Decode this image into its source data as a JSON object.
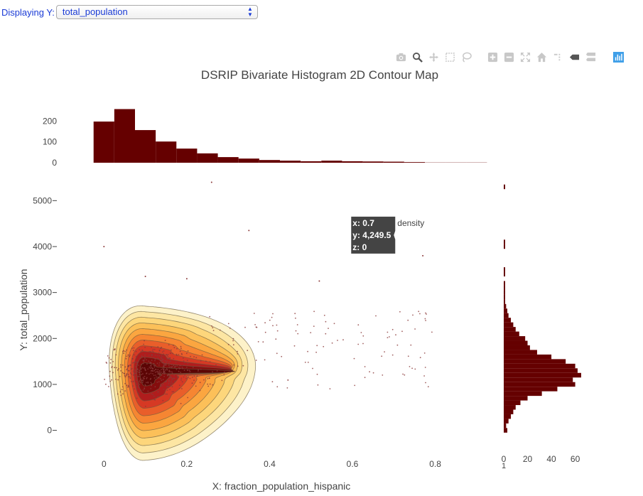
{
  "selector": {
    "label": "Displaying Y:",
    "value": "total_population"
  },
  "modebar": [
    "camera-icon",
    "zoom-icon",
    "pan-icon",
    "box-select-icon",
    "lasso-icon",
    "zoom-in-icon",
    "zoom-out-icon",
    "autoscale-icon",
    "home-icon",
    "spike-lines-icon",
    "hover-closest-icon",
    "hover-compare-icon",
    "plotly-logo-icon"
  ],
  "colors": {
    "hist": "#650000",
    "scatter": "#8b3a3a",
    "contour": [
      "#fdf2c9",
      "#fde6a3",
      "#fdd67b",
      "#fcc059",
      "#fba640",
      "#f68632",
      "#e95e2a",
      "#d63924",
      "#b01d1d",
      "#850d0d",
      "#5c0505"
    ]
  },
  "chart_data": {
    "type": "contour",
    "title": "DSRIP Bivariate Histogram 2D Contour Map",
    "xlabel": "X:  fraction_population_hispanic",
    "ylabel": "Y:  total_population",
    "xlim": [
      -0.1,
      0.95
    ],
    "ylim": [
      -300,
      5500
    ],
    "xticks": [
      0,
      0.2,
      0.4,
      0.6,
      0.8
    ],
    "xtick_labels": [
      "0",
      "0.2",
      "0.4",
      "0.6",
      "0.8"
    ],
    "yticks": [
      0,
      1000,
      2000,
      3000,
      4000,
      5000
    ],
    "ytick_labels": [
      "0",
      "1000",
      "2000",
      "3000",
      "4000",
      "5000"
    ],
    "density_peak": {
      "x": 0.1,
      "y": 1250
    },
    "x_histogram": {
      "bin_start": -0.025,
      "bin_width": 0.05,
      "counts": [
        198,
        258,
        157,
        102,
        68,
        45,
        27,
        20,
        13,
        10,
        7,
        10,
        7,
        6,
        5,
        3,
        1,
        1,
        1
      ],
      "yticks": [
        0,
        100,
        200
      ],
      "ytick_labels": [
        "0",
        "100",
        "200"
      ],
      "ylim": [
        0,
        270
      ]
    },
    "y_histogram": {
      "bin_start": -50,
      "bin_width": 100,
      "counts": [
        3,
        2,
        4,
        6,
        8,
        10,
        14,
        20,
        32,
        45,
        60,
        58,
        65,
        62,
        60,
        52,
        40,
        28,
        22,
        20,
        18,
        13,
        10,
        8,
        6,
        4,
        3,
        2,
        1,
        1,
        1,
        1,
        1,
        0,
        1,
        1,
        0,
        0,
        0,
        0,
        1,
        1,
        0,
        0,
        0,
        0,
        0,
        0,
        0,
        0,
        0,
        0,
        0,
        1
      ],
      "xticks": [
        0,
        20,
        40,
        60
      ],
      "xtick_labels": [
        "0",
        "20",
        "40",
        "60"
      ],
      "extra_tick_label": "1",
      "xlim": [
        0,
        68
      ]
    },
    "hover": {
      "x_text": "x: 0.7",
      "y_text": "y: 4,249.5",
      "z_text": "z: 0",
      "trace_name": "density",
      "x": 0.7,
      "y": 4249.5
    }
  }
}
